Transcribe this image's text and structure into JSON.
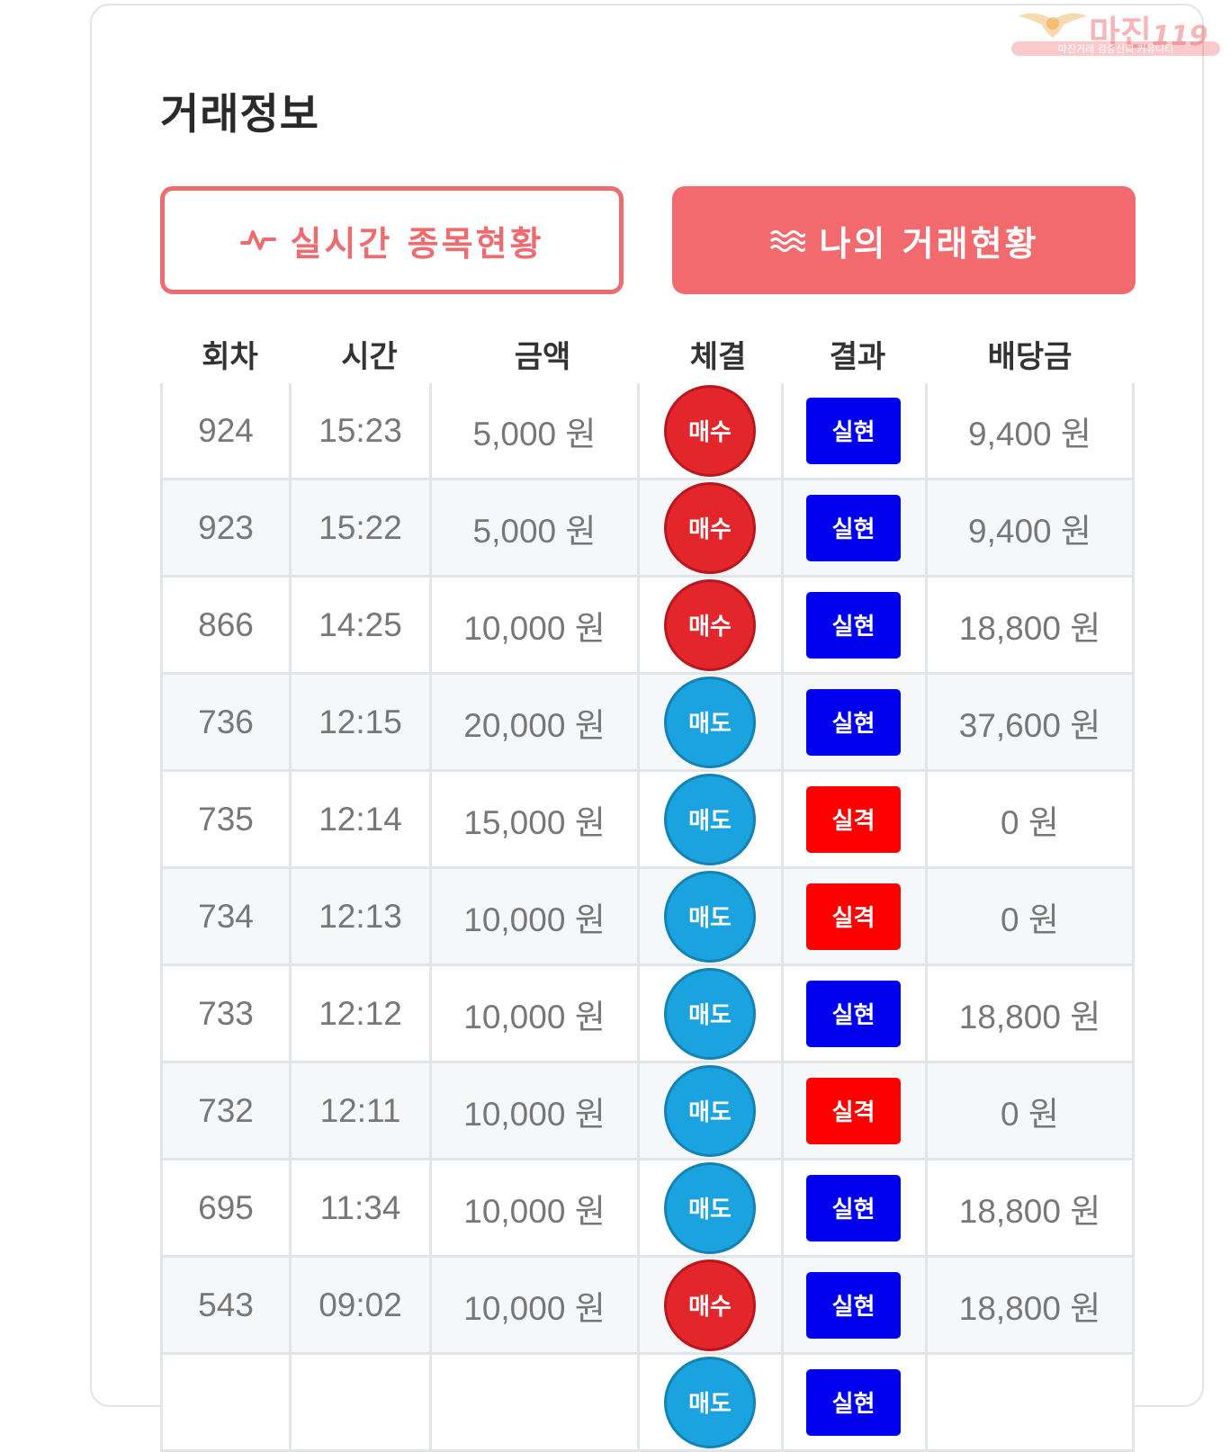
{
  "watermark": {
    "brand": "마진",
    "brand_suffix": "119",
    "tagline": "마진거래 검증신뢰 커뮤니티"
  },
  "page": {
    "title": "거래정보"
  },
  "tabs": {
    "realtime": {
      "label": "실시간 종목현황",
      "icon": "pulse-icon"
    },
    "mine": {
      "label": "나의 거래현황",
      "icon": "waves-icon"
    }
  },
  "colors": {
    "accent": "#f26a6e",
    "buy": "#e3262b",
    "sell": "#1aa3de",
    "hit": "#0000ee",
    "miss": "#ff0000"
  },
  "table": {
    "headers": [
      "회차",
      "시간",
      "금액",
      "체결",
      "결과",
      "배당금"
    ],
    "rows": [
      {
        "round": "924",
        "time": "15:23",
        "amount": "5,000 원",
        "side": "매수",
        "result": "실현",
        "payout": "9,400 원"
      },
      {
        "round": "923",
        "time": "15:22",
        "amount": "5,000 원",
        "side": "매수",
        "result": "실현",
        "payout": "9,400 원"
      },
      {
        "round": "866",
        "time": "14:25",
        "amount": "10,000 원",
        "side": "매수",
        "result": "실현",
        "payout": "18,800 원"
      },
      {
        "round": "736",
        "time": "12:15",
        "amount": "20,000 원",
        "side": "매도",
        "result": "실현",
        "payout": "37,600 원"
      },
      {
        "round": "735",
        "time": "12:14",
        "amount": "15,000 원",
        "side": "매도",
        "result": "실격",
        "payout": "0 원"
      },
      {
        "round": "734",
        "time": "12:13",
        "amount": "10,000 원",
        "side": "매도",
        "result": "실격",
        "payout": "0 원"
      },
      {
        "round": "733",
        "time": "12:12",
        "amount": "10,000 원",
        "side": "매도",
        "result": "실현",
        "payout": "18,800 원"
      },
      {
        "round": "732",
        "time": "12:11",
        "amount": "10,000 원",
        "side": "매도",
        "result": "실격",
        "payout": "0 원"
      },
      {
        "round": "695",
        "time": "11:34",
        "amount": "10,000 원",
        "side": "매도",
        "result": "실현",
        "payout": "18,800 원"
      },
      {
        "round": "543",
        "time": "09:02",
        "amount": "10,000 원",
        "side": "매수",
        "result": "실현",
        "payout": "18,800 원"
      },
      {
        "round": "",
        "time": "",
        "amount": "",
        "side": "매도",
        "result": "실현",
        "payout": ""
      }
    ]
  }
}
